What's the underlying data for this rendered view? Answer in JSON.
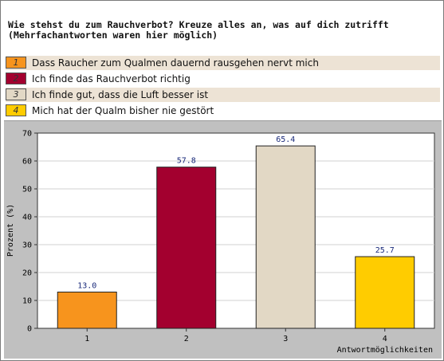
{
  "question": {
    "line1": "Wie stehst du zum Rauchverbot? Kreuze alles an, was auf dich zutrifft",
    "line2": "(Mehrfachantworten waren hier möglich)"
  },
  "legend": [
    {
      "number": "1",
      "label": "Dass Raucher zum Qualmen dauernd rausgehen nervt mich",
      "color": "#f7941d"
    },
    {
      "number": "2",
      "label": "Ich finde das Rauchverbot richtig",
      "color": "#a3002f"
    },
    {
      "number": "3",
      "label": "Ich finde gut, dass die Luft besser ist",
      "color": "#e2d8c5"
    },
    {
      "number": "4",
      "label": "Mich hat der Qualm bisher nie gestört",
      "color": "#ffcc00"
    }
  ],
  "chart_data": {
    "type": "bar",
    "categories": [
      "1",
      "2",
      "3",
      "4"
    ],
    "values": [
      13.0,
      57.8,
      65.4,
      25.7
    ],
    "value_labels": [
      "13.0",
      "57.8",
      "65.4",
      "25.7"
    ],
    "colors": [
      "#f7941d",
      "#a3002f",
      "#e2d8c5",
      "#ffcc00"
    ],
    "xlabel": "Antwortmöglichkeiten",
    "ylabel": "Prozent (%)",
    "ylim": [
      0,
      70
    ],
    "yticks": [
      0,
      10,
      20,
      30,
      40,
      50,
      60,
      70
    ],
    "grid": true,
    "background": "#c0c0c0"
  }
}
